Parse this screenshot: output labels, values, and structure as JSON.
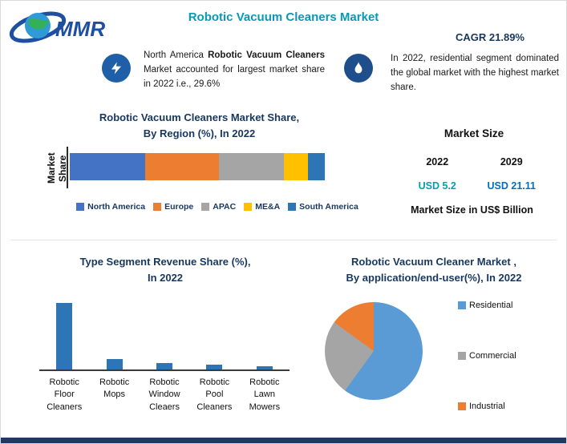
{
  "header": {
    "title": "Robotic Vacuum Cleaners Market",
    "logo": {
      "text": "MMR",
      "globe_icon": "globe-icon"
    }
  },
  "palette": {
    "title_teal": "#0899B5",
    "navy": "#17375E",
    "bottom_bar_navy": "#1F3864",
    "callout_circle_blue": "#1F5FA8"
  },
  "highlights": {
    "left": {
      "icon": "lightning-bolt-icon",
      "prefix": "North America ",
      "bold": "Robotic Vacuum Cleaners",
      "suffix": " Market accounted for largest market share in 2022 i.e., 29.6%"
    },
    "right": {
      "icon": "flame-icon",
      "cagr_label": "CAGR 21.89%",
      "text": "In 2022, residential segment dominated the global market with the highest market share."
    }
  },
  "market_size": {
    "title": "Market Size",
    "years": [
      "2022",
      "2029"
    ],
    "values": [
      "USD 5.2",
      "USD 21.11"
    ],
    "value_colors": [
      "#00A0AE",
      "#0070C0"
    ],
    "footer": "Market Size in US$ Billion"
  },
  "chart_data": [
    {
      "id": "region_share",
      "type": "bar",
      "subtype": "horizontal-stacked",
      "title": "Robotic Vacuum Cleaners Market Share,",
      "title_line2": "By Region (%), In 2022",
      "ylabel": "Market Share",
      "categories": [
        "North America",
        "Europe",
        "APAC",
        "ME&A",
        "South America"
      ],
      "values": [
        29.6,
        28.9,
        25.5,
        9.4,
        6.6
      ],
      "colors": [
        "#4472C4",
        "#ED7D31",
        "#A5A5A5",
        "#FFC000",
        "#2E75B6"
      ],
      "legend_position": "bottom",
      "grid": false
    },
    {
      "id": "type_segment",
      "type": "bar",
      "title": "Type Segment Revenue Share (%),",
      "title_line2": "In 2022",
      "categories": [
        "Robotic Floor Cleaners",
        "Robotic Mops",
        "Robotic Window Cleaers",
        "Robotic Pool Cleaners",
        "Robotic Lawn Mowers"
      ],
      "categories_lines": [
        [
          "Robotic",
          "Floor",
          "Cleaners"
        ],
        [
          "Robotic",
          "Mops"
        ],
        [
          "Robotic",
          "Window",
          "Cleaers"
        ],
        [
          "Robotic",
          "Pool",
          "Cleaners"
        ],
        [
          "Robotic",
          "Lawn",
          "Mowers"
        ]
      ],
      "values": [
        85,
        13,
        8,
        6,
        4
      ],
      "bar_color": "#2E75B6",
      "xlabel": "",
      "ylabel": "",
      "ylim": [
        0,
        100
      ],
      "grid": false
    },
    {
      "id": "application_share",
      "type": "pie",
      "title": "Robotic Vacuum Cleaner Market ,",
      "title_line2": "By application/end-user(%), In 2022",
      "labels": [
        "Residential",
        "Commercial",
        "Industrial"
      ],
      "values": [
        60,
        25,
        15
      ],
      "colors": [
        "#5B9BD5",
        "#A5A5A5",
        "#ED7D31"
      ],
      "legend_position": "right"
    }
  ]
}
